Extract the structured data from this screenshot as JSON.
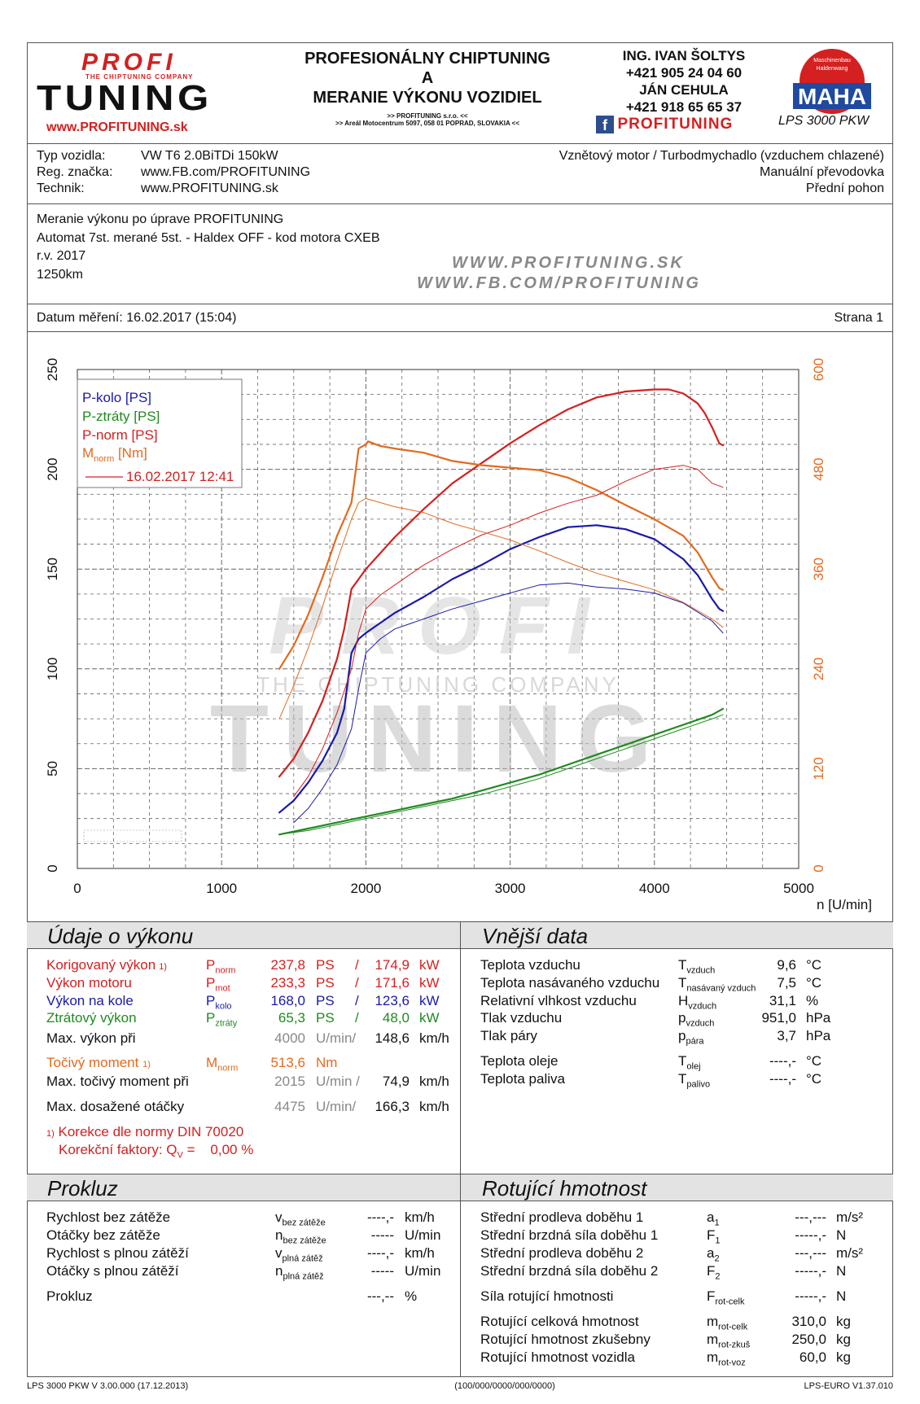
{
  "header": {
    "logo_top": "PROFI",
    "logo_tag": "THE CHIPTUNING COMPANY",
    "logo_bottom": "TUNING",
    "logo_url": "www.PROFITUNING.sk",
    "title_line1": "PROFESIONÁLNY CHIPTUNING",
    "title_line2": "A",
    "title_line3": "MERANIE VÝKONU VOZIDIEL",
    "addr1": ">> PROFITUNING s.r.o. <<",
    "addr2": ">> Areál Motocentrum 5097, 058 01 POPRAD, SLOVAKIA <<",
    "contact_name1": "ING. IVAN ŠOLTYS",
    "contact_phone1": "+421 905 24 04 60",
    "contact_name2": "JÁN CEHULA",
    "contact_phone2": "+421 918 65 65 37",
    "fb_label": "PROFITUNING",
    "maha_text": "MAHA",
    "maha_ring": "Maschinenbau Haldenwang",
    "lps": "LPS 3000 PKW",
    "brand_red": "#d42020"
  },
  "vehicle": {
    "type_label": "Typ vozidla:",
    "type_value": "VW T6 2.0BiTDi 150kW",
    "reg_label": "Reg. značka:",
    "reg_value": "www.FB.com/PROFITUNING",
    "tech_label": "Technik:",
    "tech_value": "www.PROFITUNING.sk",
    "engine": "Vznětový motor / Turbodmychadlo (vzduchem chlazené)",
    "gearbox": "Manuální převodovka",
    "drive": "Přední pohon"
  },
  "notes": {
    "line1": "Meranie výkonu po úprave PROFITUNING",
    "line2": "Automat 7st. merané 5st. - Haldex OFF - kod motora CXEB",
    "line3": "r.v. 2017",
    "line4": "1250km",
    "web1": "WWW.PROFITUNING.SK",
    "web2": "WWW.FB.COM/PROFITUNING"
  },
  "date": {
    "label": "Datum měření: 16.02.2017 (15:04)",
    "page": "Strana 1"
  },
  "chart_data": {
    "type": "line",
    "xlabel": "n [U/min]",
    "xlim": [
      0,
      5000
    ],
    "x_ticks": [
      "0",
      "1000",
      "2000",
      "3000",
      "4000",
      "5000"
    ],
    "ylim_left": [
      0,
      250
    ],
    "y_ticks_left": [
      "0",
      "50",
      "100",
      "150",
      "200",
      "250"
    ],
    "ylim_right": [
      0,
      600
    ],
    "y_ticks_right": [
      "0",
      "120",
      "240",
      "360",
      "480",
      "600"
    ],
    "grid": true,
    "legend_placement": "top-left",
    "watermark_top": "PROFI",
    "watermark_tag": "THE CHIPTUNING COMPANY",
    "watermark_bottom": "TUNING",
    "legend": [
      {
        "label": "P-kolo [PS]",
        "color": "#1a1aa8"
      },
      {
        "label": "P-ztráty [PS]",
        "color": "#1f8a1f"
      },
      {
        "label": "P-norm [PS]",
        "color": "#d42020"
      },
      {
        "label": "M",
        "sub": "norm",
        "suffix": " [Nm]",
        "color": "#e26a20"
      }
    ],
    "legend_date": "16.02.2017 12:41",
    "series": [
      {
        "name": "P-kolo [PS]",
        "axis": "left",
        "color": "#1a1aa8",
        "width": 2.2,
        "x": [
          1400,
          1500,
          1600,
          1700,
          1800,
          1850,
          1900,
          1950,
          2000,
          2100,
          2200,
          2400,
          2600,
          2800,
          3000,
          3200,
          3400,
          3600,
          3800,
          4000,
          4200,
          4300,
          4400,
          4450,
          4475
        ],
        "y": [
          28,
          34,
          43,
          54,
          68,
          80,
          108,
          115,
          118,
          123,
          128,
          136,
          145,
          152,
          160,
          166,
          171,
          172,
          170,
          165,
          155,
          147,
          135,
          130,
          129
        ]
      },
      {
        "name": "P-norm [PS]",
        "axis": "left",
        "color": "#d42020",
        "width": 2.2,
        "x": [
          1400,
          1500,
          1600,
          1700,
          1800,
          1850,
          1900,
          1950,
          2000,
          2100,
          2200,
          2400,
          2600,
          2800,
          3000,
          3200,
          3400,
          3600,
          3800,
          4000,
          4100,
          4200,
          4300,
          4350,
          4400,
          4450,
          4475
        ],
        "y": [
          46,
          55,
          68,
          84,
          105,
          120,
          140,
          145,
          150,
          158,
          166,
          180,
          193,
          203,
          213,
          222,
          230,
          236,
          239,
          240,
          240,
          238,
          233,
          228,
          221,
          213,
          212
        ]
      },
      {
        "name": "P-ztráty [PS]",
        "axis": "left",
        "color": "#1f8a1f",
        "width": 2.2,
        "x": [
          1400,
          1600,
          1800,
          2000,
          2200,
          2400,
          2600,
          2800,
          3000,
          3200,
          3400,
          3600,
          3800,
          4000,
          4200,
          4400,
          4475
        ],
        "y": [
          17,
          20,
          23,
          26,
          29,
          32,
          35,
          39,
          43,
          47,
          52,
          57,
          62,
          67,
          72,
          77,
          80
        ]
      },
      {
        "name": "M-norm [Nm]",
        "axis": "right",
        "color": "#e26a20",
        "width": 2.2,
        "x": [
          1400,
          1500,
          1600,
          1700,
          1800,
          1900,
          1950,
          2000,
          2015,
          2100,
          2200,
          2400,
          2600,
          2800,
          3000,
          3200,
          3400,
          3600,
          3800,
          4000,
          4200,
          4300,
          4400,
          4450,
          4475
        ],
        "y": [
          240,
          268,
          305,
          350,
          400,
          440,
          505,
          510,
          513.6,
          508,
          505,
          500,
          490,
          485,
          482,
          479,
          470,
          455,
          437,
          420,
          400,
          380,
          350,
          337,
          335
        ]
      },
      {
        "name": "P-kolo (ref)",
        "axis": "left",
        "color": "#1a1aa8",
        "width": 1,
        "x": [
          1500,
          1600,
          1700,
          1800,
          1900,
          1950,
          2000,
          2100,
          2200,
          2400,
          2600,
          2800,
          3000,
          3200,
          3400,
          3600,
          3800,
          4000,
          4200,
          4400,
          4475
        ],
        "y": [
          23,
          30,
          40,
          52,
          70,
          90,
          108,
          115,
          120,
          125,
          130,
          134,
          138,
          142,
          143,
          141,
          140,
          138,
          133,
          124,
          118
        ]
      },
      {
        "name": "P-norm (ref)",
        "axis": "left",
        "color": "#d42020",
        "width": 1,
        "x": [
          1500,
          1600,
          1700,
          1800,
          1900,
          1950,
          2000,
          2100,
          2200,
          2400,
          2600,
          2800,
          3000,
          3200,
          3400,
          3600,
          3800,
          4000,
          4200,
          4300,
          4400,
          4475
        ],
        "y": [
          36,
          46,
          60,
          78,
          100,
          118,
          130,
          137,
          142,
          152,
          160,
          167,
          172,
          178,
          183,
          187,
          194,
          200,
          202,
          200,
          193,
          191
        ]
      },
      {
        "name": "P-ztráty (ref)",
        "axis": "left",
        "color": "#1f8a1f",
        "width": 1,
        "x": [
          1400,
          1600,
          1800,
          2000,
          2200,
          2400,
          2600,
          2800,
          3000,
          3200,
          3400,
          3600,
          3800,
          4000,
          4200,
          4400,
          4475
        ],
        "y": [
          17,
          19,
          22,
          25,
          28,
          31,
          34,
          37,
          41,
          45,
          50,
          55,
          60,
          65,
          70,
          75,
          77
        ]
      },
      {
        "name": "M-norm (ref)",
        "axis": "right",
        "color": "#e26a20",
        "width": 1,
        "x": [
          1400,
          1500,
          1600,
          1700,
          1800,
          1900,
          1950,
          2000,
          2100,
          2200,
          2400,
          2600,
          2800,
          3000,
          3200,
          3400,
          3600,
          3800,
          4000,
          4200,
          4400,
          4475
        ],
        "y": [
          180,
          220,
          265,
          315,
          370,
          420,
          440,
          445,
          440,
          435,
          428,
          415,
          405,
          395,
          382,
          368,
          355,
          345,
          335,
          320,
          300,
          290
        ]
      }
    ]
  },
  "perf": {
    "title": "Údaje o výkonu",
    "rows": [
      {
        "label": "Korigovaný výkon",
        "sup": "1)",
        "sym": "P",
        "sub": "norm",
        "v1": "237,8",
        "u1": "PS",
        "sep": "/",
        "v2": "174,9",
        "u2": "kW",
        "color": "#d42020"
      },
      {
        "label": "Výkon motoru",
        "sup": "",
        "sym": "P",
        "sub": "mot",
        "v1": "233,3",
        "u1": "PS",
        "sep": "/",
        "v2": "171,6",
        "u2": "kW",
        "color": "#d42020"
      },
      {
        "label": "Výkon na kole",
        "sup": "",
        "sym": "P",
        "sub": "kolo",
        "v1": "168,0",
        "u1": "PS",
        "sep": "/",
        "v2": "123,6",
        "u2": "kW",
        "color": "#1a1aa8"
      },
      {
        "label": "Ztrátový výkon",
        "sup": "",
        "sym": "P",
        "sub": "ztráty",
        "v1": "65,3",
        "u1": "PS",
        "sep": "/",
        "v2": "48,0",
        "u2": "kW",
        "color": "#1f8a1f"
      }
    ],
    "maxp_label": "Max. výkon při",
    "maxp_rpm": "4000",
    "maxp_unit": "U/min/",
    "maxp_speed": "148,6",
    "maxp_speed_unit": "km/h",
    "torque_label": "Točivý moment",
    "torque_sup": "1)",
    "torque_sym": "M",
    "torque_sub": "norm",
    "torque_val": "513,6",
    "torque_unit": "Nm",
    "maxm_label": "Max. točivý moment při",
    "maxm_rpm": "2015",
    "maxm_unit": "U/min /",
    "maxm_speed": "74,9",
    "maxm_speed_unit": "km/h",
    "maxn_label": "Max. dosažené otáčky",
    "maxn_rpm": "4475",
    "maxn_unit": "U/min/",
    "maxn_speed": "166,3",
    "maxn_speed_unit": "km/h",
    "note_sup": "1)",
    "note1": "Korekce dle normy DIN 70020",
    "note2_pre": "Korekční faktory: Q",
    "note2_sub": "V",
    "note2_post": " =    0,00 %"
  },
  "ext": {
    "title": "Vnější data",
    "rows": [
      {
        "label": "Teplota vzduchu",
        "sym": "T",
        "sub": "vzduch",
        "val": "9,6",
        "unit": "°C"
      },
      {
        "label": "Teplota nasávaného vzduchu",
        "sym": "T",
        "sub": "nasávaný vzduch",
        "val": "7,5",
        "unit": "°C"
      },
      {
        "label": "Relativní vlhkost vzduchu",
        "sym": "H",
        "sub": "vzduch",
        "val": "31,1",
        "unit": "%"
      },
      {
        "label": "Tlak vzduchu",
        "sym": "p",
        "sub": "vzduch",
        "val": "951,0",
        "unit": "hPa"
      },
      {
        "label": "Tlak páry",
        "sym": "p",
        "sub": "pára",
        "val": "3,7",
        "unit": "hPa"
      },
      {
        "label": "Teplota oleje",
        "sym": "T",
        "sub": "olej",
        "val": "----,-",
        "unit": "°C"
      },
      {
        "label": "Teplota paliva",
        "sym": "T",
        "sub": "palivo",
        "val": "----,-",
        "unit": "°C"
      }
    ]
  },
  "slip": {
    "title": "Prokluz",
    "rows": [
      {
        "label": "Rychlost bez zátěže",
        "sym": "v",
        "sub": "bez zátěže",
        "val": "----,-",
        "unit": "km/h"
      },
      {
        "label": "Otáčky bez zátěže",
        "sym": "n",
        "sub": "bez zátěže",
        "val": "-----",
        "unit": "U/min"
      },
      {
        "label": "Rychlost s plnou zátěží",
        "sym": "v",
        "sub": "plná zátěž",
        "val": "----,-",
        "unit": "km/h"
      },
      {
        "label": "Otáčky s plnou zátěží",
        "sym": "n",
        "sub": "plná zátěž",
        "val": "-----",
        "unit": "U/min"
      },
      {
        "label": "Prokluz",
        "sym": "",
        "sub": "",
        "val": "---,--",
        "unit": "%"
      }
    ]
  },
  "rot": {
    "title": "Rotující hmotnost",
    "rows": [
      {
        "label": "Střední prodleva doběhu 1",
        "sym": "a",
        "sub": "1",
        "val": "---,---",
        "unit": "m/s²"
      },
      {
        "label": "Střední brzdná síla doběhu 1",
        "sym": "F",
        "sub": "1",
        "val": "-----,-",
        "unit": "N"
      },
      {
        "label": "Střední prodleva doběhu 2",
        "sym": "a",
        "sub": "2",
        "val": "---,---",
        "unit": "m/s²"
      },
      {
        "label": "Střední brzdná síla doběhu 2",
        "sym": "F",
        "sub": "2",
        "val": "-----,-",
        "unit": "N"
      },
      {
        "label": "Síla rotující hmotnosti",
        "sym": "F",
        "sub": "rot-celk",
        "val": "-----,-",
        "unit": "N"
      },
      {
        "label": "Rotující celková hmotnost",
        "sym": "m",
        "sub": "rot-celk",
        "val": "310,0",
        "unit": "kg"
      },
      {
        "label": "Rotující hmotnost zkušebny",
        "sym": "m",
        "sub": "rot-zkuš",
        "val": "250,0",
        "unit": "kg"
      },
      {
        "label": "Rotující hmotnost vozidla",
        "sym": "m",
        "sub": "rot-voz",
        "val": "60,0",
        "unit": "kg"
      }
    ]
  },
  "footer": {
    "left": "LPS 3000 PKW V 3.00.000 (17.12.2013)",
    "center": "(100/000/0000/000/0000)",
    "right": "LPS-EURO V1.37.010"
  }
}
